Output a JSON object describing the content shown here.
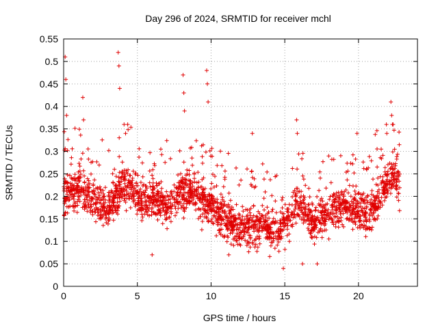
{
  "chart_data": {
    "type": "scatter",
    "title": "Day 296 of 2024, SRMTID for receiver mchl",
    "xlabel": "GPS time / hours",
    "ylabel": "SRMTID / TECUs",
    "xlim": [
      0,
      24
    ],
    "ylim": [
      0,
      0.55
    ],
    "x_ticks": [
      0,
      5,
      10,
      15,
      20
    ],
    "x_tick_labels": [
      "0",
      "5",
      "10",
      "15",
      "20"
    ],
    "y_ticks": [
      0,
      0.05,
      0.1,
      0.15,
      0.2,
      0.25,
      0.3,
      0.35,
      0.4,
      0.45,
      0.5,
      0.55
    ],
    "y_tick_labels": [
      "0",
      "0.05",
      "0.1",
      "0.15",
      "0.2",
      "0.25",
      "0.3",
      "0.35",
      "0.4",
      "0.45",
      "0.5",
      "0.55"
    ],
    "grid": true,
    "marker": "+",
    "marker_color": "#e00000",
    "x_data_range": [
      0,
      22.8
    ],
    "series": [
      {
        "name": "SRMTID",
        "trend": [
          [
            0.0,
            0.2
          ],
          [
            0.5,
            0.21
          ],
          [
            1.0,
            0.22
          ],
          [
            1.5,
            0.21
          ],
          [
            2.0,
            0.19
          ],
          [
            2.5,
            0.18
          ],
          [
            3.0,
            0.17
          ],
          [
            3.5,
            0.2
          ],
          [
            4.0,
            0.23
          ],
          [
            4.5,
            0.22
          ],
          [
            5.0,
            0.2
          ],
          [
            5.5,
            0.19
          ],
          [
            6.0,
            0.2
          ],
          [
            6.5,
            0.19
          ],
          [
            7.0,
            0.18
          ],
          [
            7.5,
            0.19
          ],
          [
            8.0,
            0.21
          ],
          [
            8.5,
            0.22
          ],
          [
            9.0,
            0.2
          ],
          [
            9.5,
            0.19
          ],
          [
            10.0,
            0.18
          ],
          [
            10.5,
            0.16
          ],
          [
            11.0,
            0.15
          ],
          [
            11.5,
            0.14
          ],
          [
            12.0,
            0.13
          ],
          [
            12.5,
            0.13
          ],
          [
            13.0,
            0.13
          ],
          [
            13.5,
            0.14
          ],
          [
            14.0,
            0.13
          ],
          [
            14.5,
            0.12
          ],
          [
            15.0,
            0.14
          ],
          [
            15.5,
            0.17
          ],
          [
            16.0,
            0.18
          ],
          [
            16.5,
            0.16
          ],
          [
            17.0,
            0.14
          ],
          [
            17.5,
            0.15
          ],
          [
            18.0,
            0.16
          ],
          [
            18.5,
            0.17
          ],
          [
            19.0,
            0.18
          ],
          [
            19.5,
            0.17
          ],
          [
            20.0,
            0.17
          ],
          [
            20.5,
            0.16
          ],
          [
            21.0,
            0.17
          ],
          [
            21.5,
            0.2
          ],
          [
            22.0,
            0.24
          ],
          [
            22.5,
            0.25
          ],
          [
            22.8,
            0.22
          ]
        ],
        "spikes": [
          {
            "x": 0.1,
            "y": 0.51
          },
          {
            "x": 0.15,
            "y": 0.46
          },
          {
            "x": 0.2,
            "y": 0.38
          },
          {
            "x": 1.3,
            "y": 0.42
          },
          {
            "x": 1.35,
            "y": 0.37
          },
          {
            "x": 3.7,
            "y": 0.52
          },
          {
            "x": 3.75,
            "y": 0.49
          },
          {
            "x": 3.8,
            "y": 0.44
          },
          {
            "x": 4.1,
            "y": 0.36
          },
          {
            "x": 4.2,
            "y": 0.34
          },
          {
            "x": 8.1,
            "y": 0.47
          },
          {
            "x": 8.15,
            "y": 0.43
          },
          {
            "x": 8.2,
            "y": 0.39
          },
          {
            "x": 9.7,
            "y": 0.48
          },
          {
            "x": 9.75,
            "y": 0.45
          },
          {
            "x": 9.8,
            "y": 0.41
          },
          {
            "x": 12.8,
            "y": 0.34
          },
          {
            "x": 15.8,
            "y": 0.37
          },
          {
            "x": 15.85,
            "y": 0.34
          },
          {
            "x": 19.9,
            "y": 0.34
          },
          {
            "x": 22.2,
            "y": 0.41
          },
          {
            "x": 22.25,
            "y": 0.38
          },
          {
            "x": 22.3,
            "y": 0.36
          },
          {
            "x": 14.9,
            "y": 0.04
          },
          {
            "x": 16.2,
            "y": 0.05
          },
          {
            "x": 17.2,
            "y": 0.05
          },
          {
            "x": 6.0,
            "y": 0.07
          },
          {
            "x": 11.2,
            "y": 0.07
          }
        ]
      }
    ]
  }
}
